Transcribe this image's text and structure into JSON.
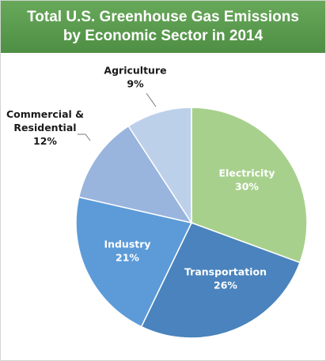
{
  "chart_data": {
    "type": "pie",
    "title": [
      "Total U.S. Greenhouse Gas Emissions",
      "by Economic Sector in 2014"
    ],
    "slices": [
      {
        "name": "Electricity",
        "value": 30,
        "label_lines": [
          "Electricity",
          "30%"
        ],
        "color": "#a8d08d",
        "label_color": "#ffffff"
      },
      {
        "name": "Transportation",
        "value": 26,
        "label_lines": [
          "Transportation",
          "26%"
        ],
        "color": "#4a83bd",
        "label_color": "#ffffff"
      },
      {
        "name": "Industry",
        "value": 21,
        "label_lines": [
          "Industry",
          "21%"
        ],
        "color": "#5c9bd8",
        "label_color": "#ffffff"
      },
      {
        "name": "Commercial & Residential",
        "value": 12,
        "label_lines": [
          "Commercial &",
          "Residential",
          "12%"
        ],
        "color": "#99b5de",
        "label_color": "#1a1a1a"
      },
      {
        "name": "Agriculture",
        "value": 9,
        "label_lines": [
          "Agriculture",
          "9%"
        ],
        "color": "#bdd0ea",
        "label_color": "#1a1a1a"
      }
    ],
    "start_angle_deg": 0,
    "direction": "clockwise",
    "header_color": "#5a9a4e"
  }
}
